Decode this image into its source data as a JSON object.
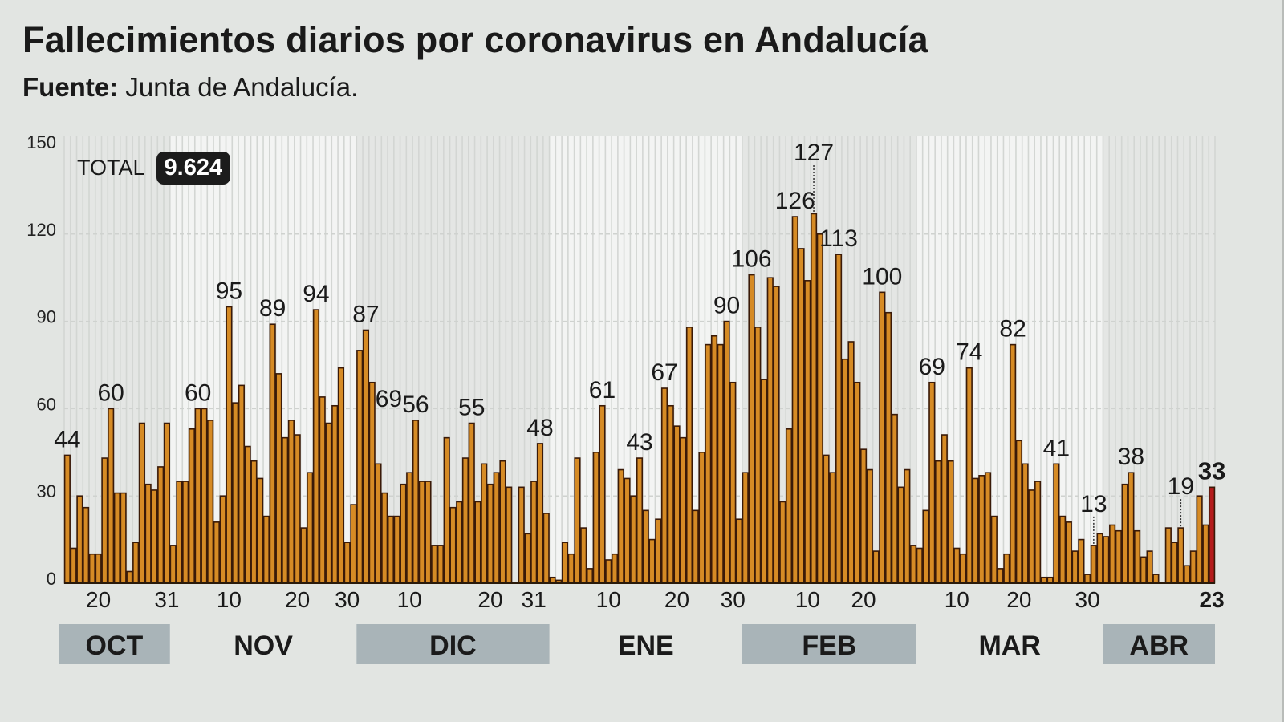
{
  "header": {
    "title": "Fallecimientos diarios por coronavirus en Andalucía",
    "source_label": "Fuente:",
    "source_value": "Junta de Andalucía."
  },
  "total": {
    "label": "TOTAL",
    "value": "9.624"
  },
  "colors": {
    "background": "#e2e5e2",
    "bar": "#d68b25",
    "bar_outline": "#3a1a08",
    "latest_bar": "#b41b1b",
    "month_box": "#a9b4b8"
  },
  "chart_data": {
    "type": "bar",
    "title": "Fallecimientos diarios por coronavirus en Andalucía",
    "ylim": [
      0,
      150
    ],
    "yticks": [
      0,
      30,
      60,
      90,
      120,
      150
    ],
    "grid": true,
    "values": [
      44,
      12,
      30,
      26,
      10,
      10,
      43,
      60,
      31,
      31,
      4,
      14,
      55,
      34,
      32,
      40,
      55,
      13,
      35,
      35,
      53,
      60,
      60,
      56,
      21,
      30,
      95,
      62,
      68,
      47,
      42,
      36,
      23,
      89,
      72,
      50,
      56,
      51,
      19,
      38,
      94,
      64,
      55,
      61,
      74,
      14,
      27,
      80,
      87,
      69,
      41,
      31,
      23,
      23,
      34,
      38,
      56,
      35,
      35,
      13,
      13,
      50,
      26,
      28,
      43,
      55,
      28,
      41,
      34,
      38,
      42,
      33,
      0,
      33,
      17,
      35,
      48,
      24,
      2,
      1,
      14,
      10,
      43,
      19,
      5,
      45,
      61,
      8,
      10,
      39,
      36,
      30,
      43,
      25,
      15,
      22,
      67,
      61,
      54,
      50,
      88,
      25,
      45,
      82,
      85,
      82,
      90,
      69,
      22,
      38,
      106,
      88,
      70,
      105,
      102,
      28,
      53,
      126,
      115,
      104,
      127,
      120,
      44,
      38,
      113,
      77,
      83,
      69,
      46,
      39,
      11,
      100,
      93,
      58,
      33,
      39,
      13,
      12,
      25,
      69,
      42,
      51,
      42,
      12,
      10,
      74,
      36,
      37,
      38,
      23,
      5,
      10,
      82,
      49,
      41,
      32,
      35,
      2,
      2,
      41,
      23,
      21,
      11,
      15,
      3,
      13,
      17,
      16,
      20,
      18,
      34,
      38,
      18,
      9,
      11,
      3,
      0,
      19,
      14,
      19,
      6,
      11,
      30,
      20,
      33
    ],
    "highlight_last": true,
    "xticks": [
      {
        "label": "20",
        "bar": 6
      },
      {
        "label": "31",
        "bar": 17
      },
      {
        "label": "10",
        "bar": 27
      },
      {
        "label": "20",
        "bar": 38
      },
      {
        "label": "30",
        "bar": 46
      },
      {
        "label": "10",
        "bar": 56
      },
      {
        "label": "20",
        "bar": 69
      },
      {
        "label": "31",
        "bar": 76
      },
      {
        "label": "10",
        "bar": 88
      },
      {
        "label": "20",
        "bar": 99
      },
      {
        "label": "30",
        "bar": 108
      },
      {
        "label": "10",
        "bar": 120
      },
      {
        "label": "20",
        "bar": 129
      },
      {
        "label": "10",
        "bar": 144
      },
      {
        "label": "20",
        "bar": 154
      },
      {
        "label": "30",
        "bar": 165
      },
      {
        "label": "23",
        "bar": 185,
        "bold": true
      }
    ],
    "months": [
      {
        "label": "OCT",
        "start": 1,
        "end": 17,
        "shaded": true
      },
      {
        "label": "NOV",
        "start": 18,
        "end": 47,
        "shaded": false
      },
      {
        "label": "DIC",
        "start": 48,
        "end": 78,
        "shaded": true
      },
      {
        "label": "ENE",
        "start": 79,
        "end": 109,
        "shaded": false
      },
      {
        "label": "FEB",
        "start": 110,
        "end": 137,
        "shaded": true
      },
      {
        "label": "MAR",
        "start": 138,
        "end": 167,
        "shaded": false
      },
      {
        "label": "ABR",
        "start": 168,
        "end": 185,
        "shaded": true
      }
    ],
    "annotations": [
      {
        "bar": 1,
        "text": "44"
      },
      {
        "bar": 8,
        "text": "60"
      },
      {
        "bar": 22,
        "text": "60"
      },
      {
        "bar": 27,
        "text": "95"
      },
      {
        "bar": 34,
        "text": "89"
      },
      {
        "bar": 41,
        "text": "94"
      },
      {
        "bar": 49,
        "text": "87"
      },
      {
        "bar": 50,
        "text": "69",
        "side": "right"
      },
      {
        "bar": 57,
        "text": "56"
      },
      {
        "bar": 66,
        "text": "55"
      },
      {
        "bar": 77,
        "text": "48"
      },
      {
        "bar": 87,
        "text": "61"
      },
      {
        "bar": 93,
        "text": "43"
      },
      {
        "bar": 97,
        "text": "67"
      },
      {
        "bar": 107,
        "text": "90"
      },
      {
        "bar": 111,
        "text": "106"
      },
      {
        "bar": 118,
        "text": "126"
      },
      {
        "bar": 121,
        "text": "127",
        "leader": true
      },
      {
        "bar": 125,
        "text": "113"
      },
      {
        "bar": 132,
        "text": "100"
      },
      {
        "bar": 140,
        "text": "69"
      },
      {
        "bar": 146,
        "text": "74"
      },
      {
        "bar": 153,
        "text": "82"
      },
      {
        "bar": 160,
        "text": "41"
      },
      {
        "bar": 166,
        "text": "13",
        "leader": true
      },
      {
        "bar": 172,
        "text": "38"
      },
      {
        "bar": 180,
        "text": "19",
        "leader": true
      },
      {
        "bar": 185,
        "text": "33",
        "bold": true
      }
    ]
  }
}
